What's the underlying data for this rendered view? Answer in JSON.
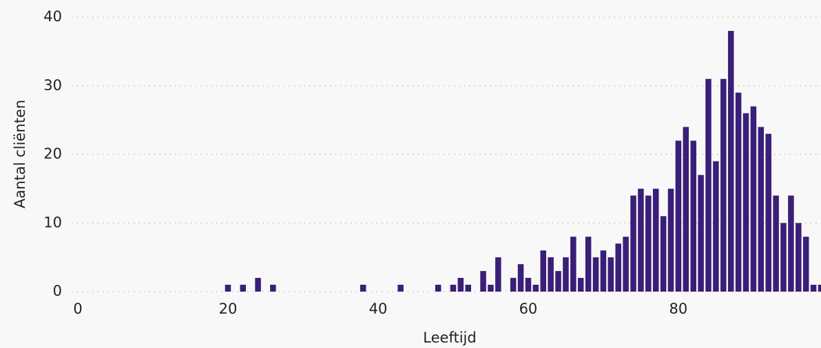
{
  "chart_data": {
    "type": "bar",
    "x_label": "Leeftijd",
    "y_label": "Aantal cliënten",
    "x": [
      20,
      22,
      24,
      26,
      38,
      43,
      48,
      50,
      51,
      52,
      54,
      55,
      56,
      58,
      59,
      60,
      61,
      62,
      63,
      64,
      65,
      66,
      67,
      68,
      69,
      70,
      71,
      72,
      73,
      74,
      75,
      76,
      77,
      78,
      79,
      80,
      81,
      82,
      83,
      84,
      85,
      86,
      87,
      88,
      89,
      90,
      91,
      92,
      93,
      94,
      95,
      96,
      97,
      98,
      99
    ],
    "values": [
      1,
      1,
      2,
      1,
      1,
      1,
      1,
      1,
      2,
      1,
      3,
      1,
      5,
      2,
      4,
      2,
      1,
      6,
      5,
      3,
      5,
      8,
      2,
      8,
      5,
      6,
      5,
      7,
      8,
      14,
      15,
      14,
      15,
      11,
      15,
      22,
      24,
      22,
      17,
      31,
      19,
      31,
      38,
      29,
      26,
      27,
      24,
      23,
      14,
      10,
      14,
      10,
      8,
      1,
      1
    ],
    "color": "#3a1e78",
    "xlim": [
      0,
      99
    ],
    "xticks": [
      0,
      20,
      40,
      60,
      80
    ],
    "ylim": [
      0,
      40
    ],
    "yticks": [
      0,
      10,
      20,
      30,
      40
    ],
    "grid": true
  }
}
